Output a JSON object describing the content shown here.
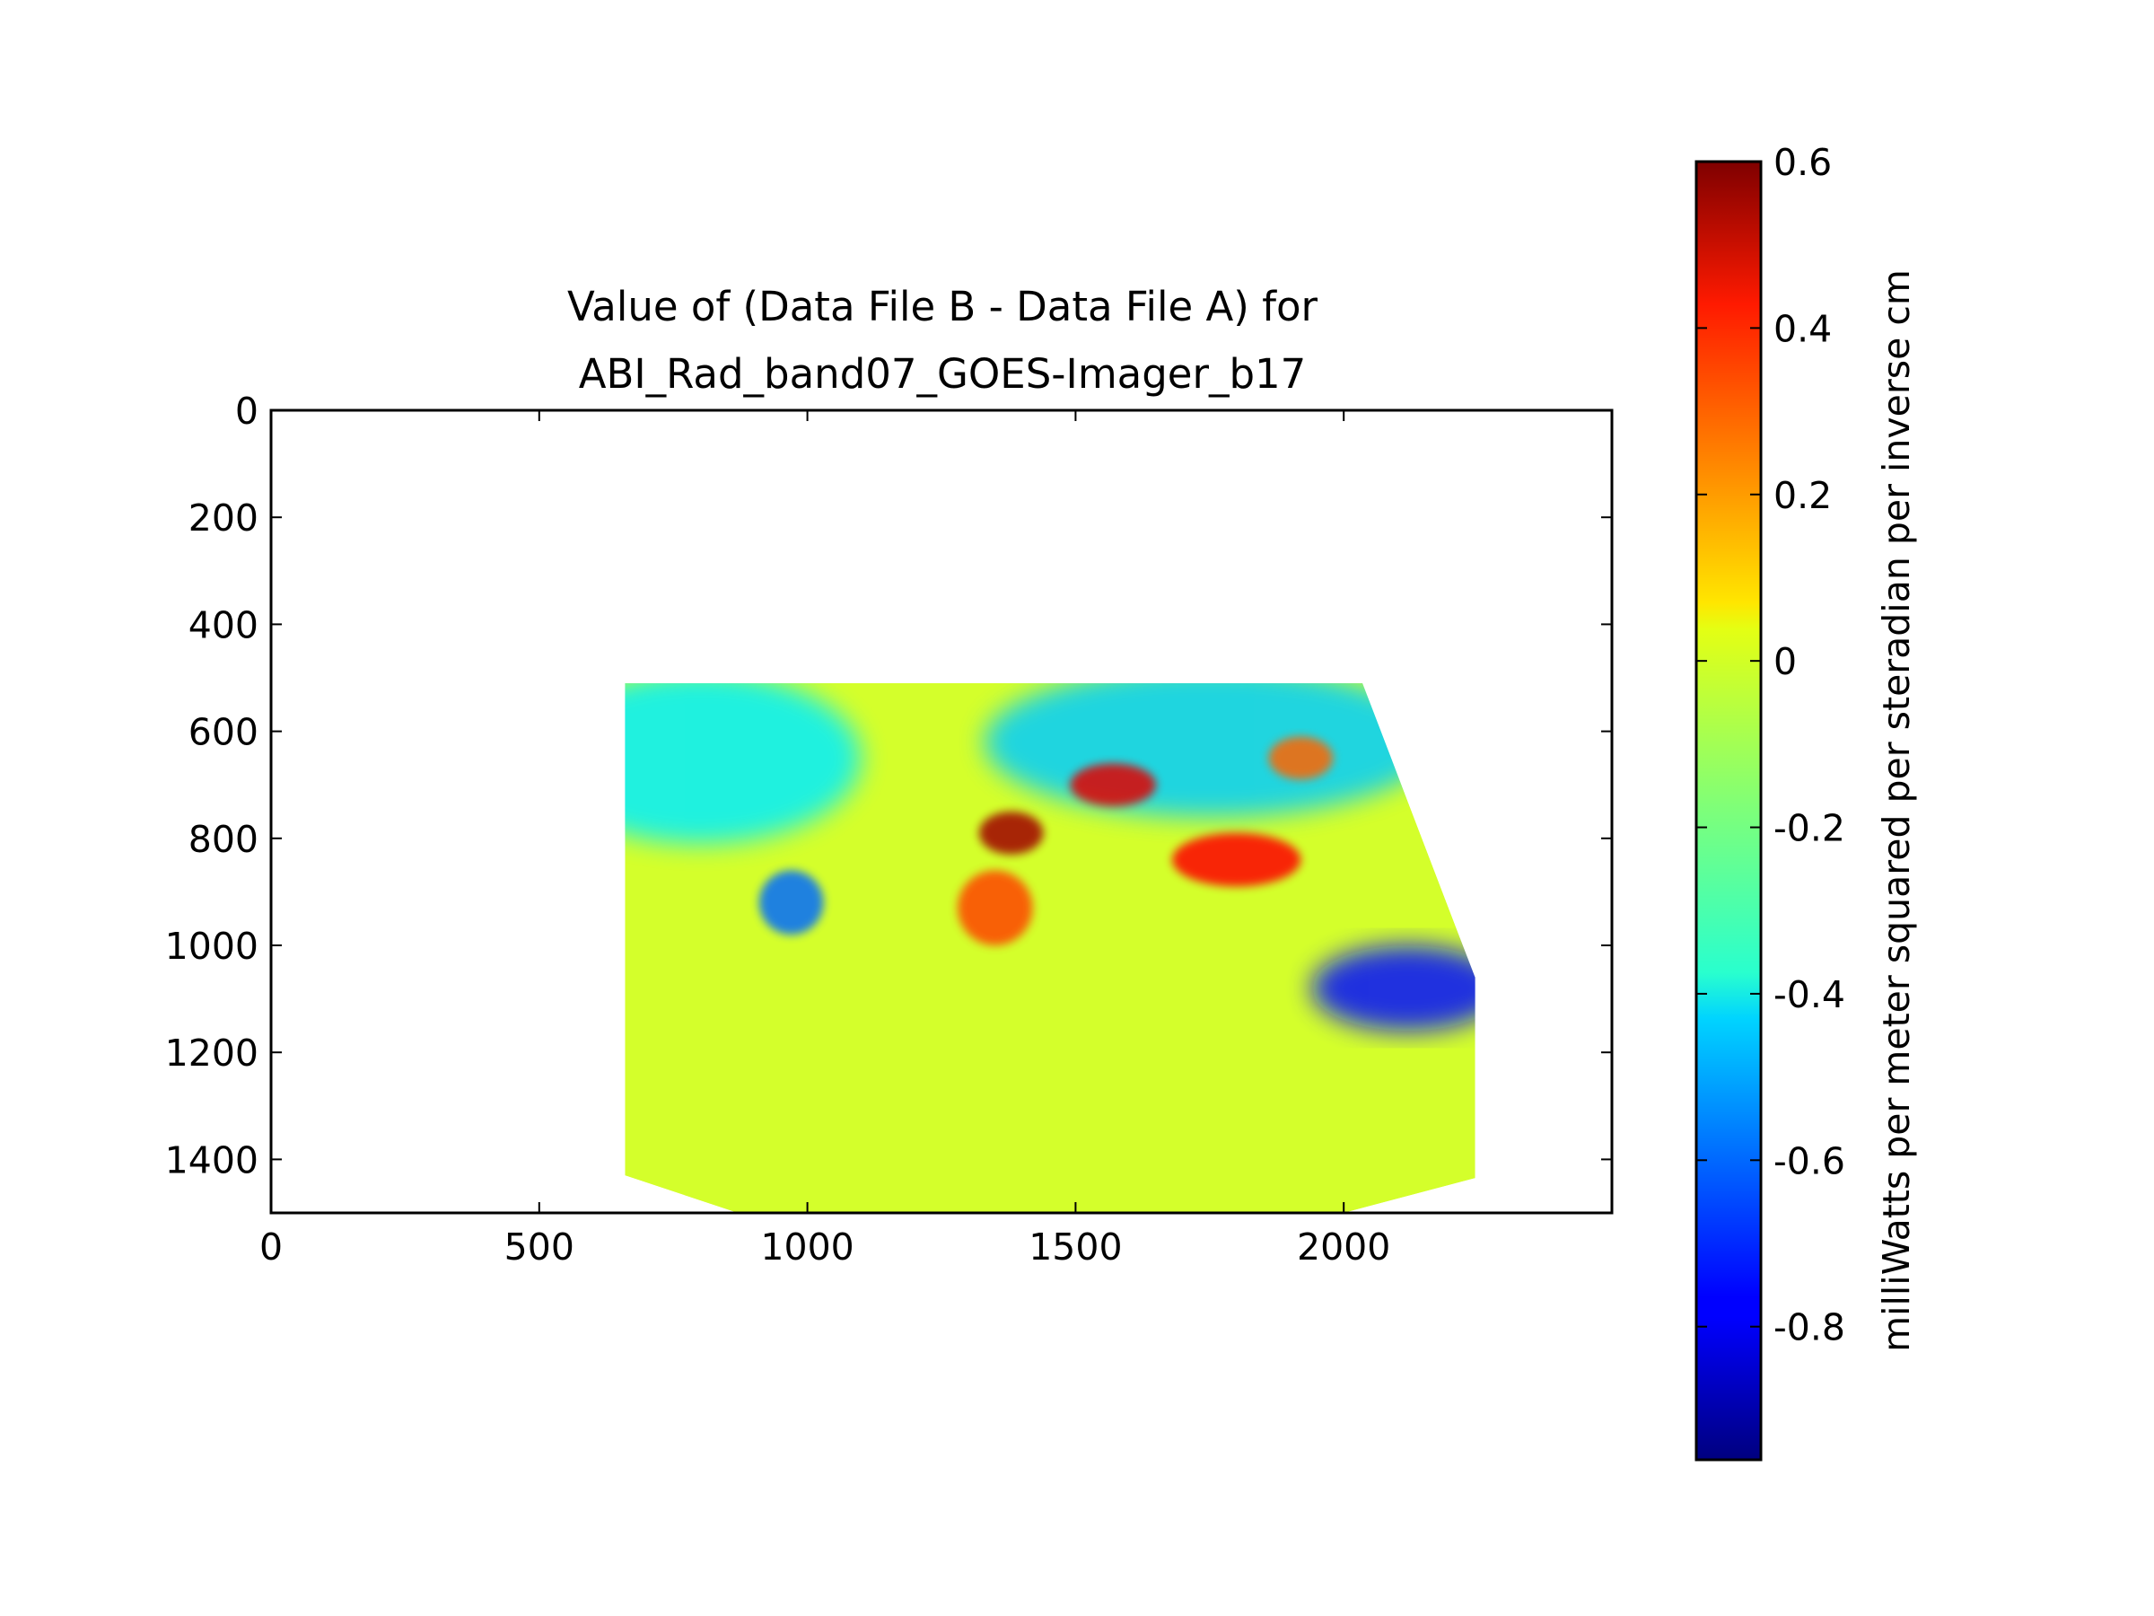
{
  "chart_data": {
    "type": "heatmap",
    "title": "Value of (Data File B - Data File A) for\nABI_Rad_band07_GOES-Imager_b17",
    "xlabel": "",
    "ylabel": "",
    "xlim": [
      0,
      2500
    ],
    "ylim": [
      1500,
      0
    ],
    "x_ticks": [
      0,
      500,
      1000,
      1500,
      2000
    ],
    "y_ticks": [
      0,
      200,
      400,
      600,
      800,
      1000,
      1200,
      1400
    ],
    "grid": false,
    "colormap": "jet",
    "colorbar": {
      "label": "milliWatts per meter squared per steradian per inverse cm",
      "vmin": -0.96,
      "vmax": 0.6,
      "ticks": [
        0.6,
        0.4,
        0.2,
        0,
        -0.2,
        -0.4,
        -0.6,
        -0.8
      ]
    },
    "data_region": {
      "description": "footprint outline in data units",
      "outline": [
        [
          660,
          510
        ],
        [
          2035,
          510
        ],
        [
          2245,
          1060
        ],
        [
          2245,
          1435
        ],
        [
          2000,
          1500
        ],
        [
          870,
          1500
        ],
        [
          660,
          1430
        ]
      ],
      "dominant_value": -0.05
    },
    "features": [
      {
        "kind": "negative",
        "x": 800,
        "y": 650,
        "rx": 300,
        "ry": 160,
        "value": -0.4
      },
      {
        "kind": "negative",
        "x": 1750,
        "y": 620,
        "rx": 420,
        "ry": 140,
        "value": -0.45
      },
      {
        "kind": "negative",
        "x": 2120,
        "y": 1080,
        "rx": 180,
        "ry": 80,
        "value": -0.75
      },
      {
        "kind": "negative",
        "x": 970,
        "y": 920,
        "rx": 60,
        "ry": 60,
        "value": -0.6
      },
      {
        "kind": "positive",
        "x": 1380,
        "y": 790,
        "rx": 60,
        "ry": 40,
        "value": 0.55
      },
      {
        "kind": "positive",
        "x": 1350,
        "y": 930,
        "rx": 70,
        "ry": 70,
        "value": 0.3
      },
      {
        "kind": "positive",
        "x": 1800,
        "y": 840,
        "rx": 120,
        "ry": 50,
        "value": 0.4
      },
      {
        "kind": "positive",
        "x": 1570,
        "y": 700,
        "rx": 80,
        "ry": 40,
        "value": 0.45
      },
      {
        "kind": "positive",
        "x": 1920,
        "y": 650,
        "rx": 60,
        "ry": 40,
        "value": 0.25
      }
    ]
  }
}
